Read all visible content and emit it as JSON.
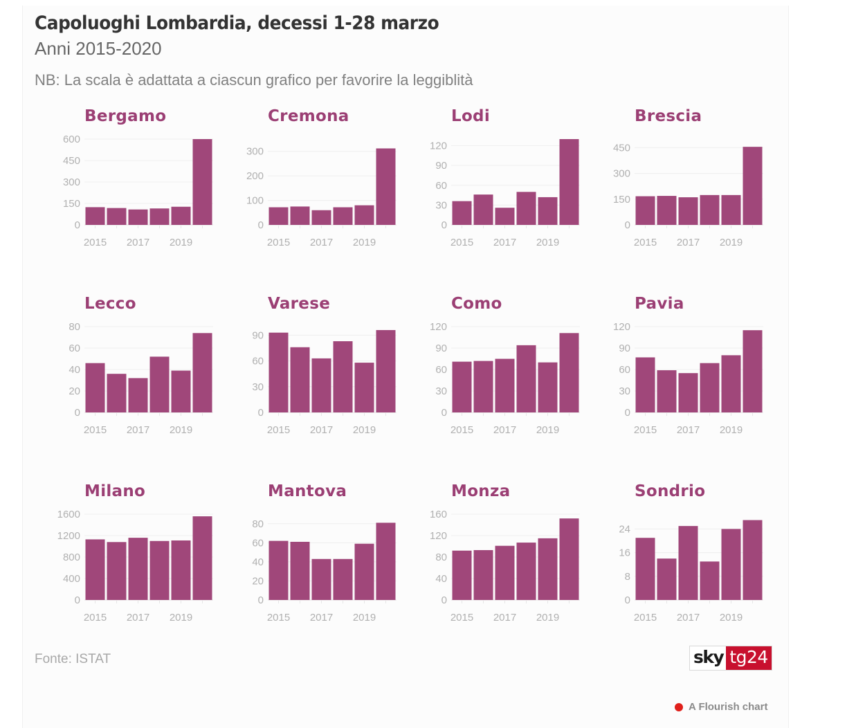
{
  "header": {
    "title": "Capoluoghi Lombardia, decessi 1-28 marzo",
    "subtitle": "Anni 2015-2020",
    "note": "NB: La scala è adattata a ciascun grafico per favorire la leggiblità"
  },
  "footer": {
    "source": "Fonte: ISTAT",
    "logo_left": "sky",
    "logo_right": "tg24",
    "flourish_label": "A Flourish chart"
  },
  "colors": {
    "bar": "#a0477a",
    "panel_title": "#9b3f74",
    "logo_red": "#c8102e"
  },
  "chart_data": [
    {
      "type": "bar",
      "title": "Bergamo",
      "categories": [
        "2015",
        "2016",
        "2017",
        "2018",
        "2019",
        "2020"
      ],
      "x_tick_labels": [
        "2015",
        "2017",
        "2019"
      ],
      "values": [
        124,
        118,
        108,
        115,
        127,
        600
      ],
      "yticks": [
        0,
        150,
        300,
        450,
        600
      ],
      "ylim": [
        0,
        600
      ],
      "xlabel": "",
      "ylabel": "",
      "grid": true
    },
    {
      "type": "bar",
      "title": "Cremona",
      "categories": [
        "2015",
        "2016",
        "2017",
        "2018",
        "2019",
        "2020"
      ],
      "x_tick_labels": [
        "2015",
        "2017",
        "2019"
      ],
      "values": [
        72,
        75,
        60,
        72,
        80,
        312
      ],
      "yticks": [
        0,
        100,
        200,
        300
      ],
      "ylim": [
        0,
        350
      ],
      "xlabel": "",
      "ylabel": "",
      "grid": true
    },
    {
      "type": "bar",
      "title": "Lodi",
      "categories": [
        "2015",
        "2016",
        "2017",
        "2018",
        "2019",
        "2020"
      ],
      "x_tick_labels": [
        "2015",
        "2017",
        "2019"
      ],
      "values": [
        36,
        46,
        26,
        50,
        42,
        130
      ],
      "yticks": [
        0,
        30,
        60,
        90,
        120
      ],
      "ylim": [
        0,
        130
      ],
      "xlabel": "",
      "ylabel": "",
      "grid": true
    },
    {
      "type": "bar",
      "title": "Brescia",
      "categories": [
        "2015",
        "2016",
        "2017",
        "2018",
        "2019",
        "2020"
      ],
      "x_tick_labels": [
        "2015",
        "2017",
        "2019"
      ],
      "values": [
        167,
        169,
        161,
        174,
        174,
        455
      ],
      "yticks": [
        0,
        150,
        300,
        450
      ],
      "ylim": [
        0,
        500
      ],
      "xlabel": "",
      "ylabel": "",
      "grid": true
    },
    {
      "type": "bar",
      "title": "Lecco",
      "categories": [
        "2015",
        "2016",
        "2017",
        "2018",
        "2019",
        "2020"
      ],
      "x_tick_labels": [
        "2015",
        "2017",
        "2019"
      ],
      "values": [
        46,
        36,
        32,
        52,
        39,
        74
      ],
      "yticks": [
        0,
        20,
        40,
        60,
        80
      ],
      "ylim": [
        0,
        80
      ],
      "xlabel": "",
      "ylabel": "",
      "grid": true
    },
    {
      "type": "bar",
      "title": "Varese",
      "categories": [
        "2015",
        "2016",
        "2017",
        "2018",
        "2019",
        "2020"
      ],
      "x_tick_labels": [
        "2015",
        "2017",
        "2019"
      ],
      "values": [
        93,
        76,
        63,
        83,
        58,
        96
      ],
      "yticks": [
        0,
        30,
        60,
        90
      ],
      "ylim": [
        0,
        100
      ],
      "xlabel": "",
      "ylabel": "",
      "grid": true
    },
    {
      "type": "bar",
      "title": "Como",
      "categories": [
        "2015",
        "2016",
        "2017",
        "2018",
        "2019",
        "2020"
      ],
      "x_tick_labels": [
        "2015",
        "2017",
        "2019"
      ],
      "values": [
        71,
        72,
        75,
        94,
        70,
        111
      ],
      "yticks": [
        0,
        30,
        60,
        90,
        120
      ],
      "ylim": [
        0,
        120
      ],
      "xlabel": "",
      "ylabel": "",
      "grid": true
    },
    {
      "type": "bar",
      "title": "Pavia",
      "categories": [
        "2015",
        "2016",
        "2017",
        "2018",
        "2019",
        "2020"
      ],
      "x_tick_labels": [
        "2015",
        "2017",
        "2019"
      ],
      "values": [
        77,
        59,
        55,
        69,
        80,
        115
      ],
      "yticks": [
        0,
        30,
        60,
        90,
        120
      ],
      "ylim": [
        0,
        120
      ],
      "xlabel": "",
      "ylabel": "",
      "grid": true
    },
    {
      "type": "bar",
      "title": "Milano",
      "categories": [
        "2015",
        "2016",
        "2017",
        "2018",
        "2019",
        "2020"
      ],
      "x_tick_labels": [
        "2015",
        "2017",
        "2019"
      ],
      "values": [
        1130,
        1080,
        1160,
        1100,
        1110,
        1560
      ],
      "yticks": [
        0,
        400,
        800,
        1200,
        1600
      ],
      "ylim": [
        0,
        1600
      ],
      "xlabel": "",
      "ylabel": "",
      "grid": true
    },
    {
      "type": "bar",
      "title": "Mantova",
      "categories": [
        "2015",
        "2016",
        "2017",
        "2018",
        "2019",
        "2020"
      ],
      "x_tick_labels": [
        "2015",
        "2017",
        "2019"
      ],
      "values": [
        62,
        61,
        43,
        43,
        59,
        81
      ],
      "yticks": [
        0,
        20,
        40,
        60,
        80
      ],
      "ylim": [
        0,
        90
      ],
      "xlabel": "",
      "ylabel": "",
      "grid": true
    },
    {
      "type": "bar",
      "title": "Monza",
      "categories": [
        "2015",
        "2016",
        "2017",
        "2018",
        "2019",
        "2020"
      ],
      "x_tick_labels": [
        "2015",
        "2017",
        "2019"
      ],
      "values": [
        92,
        93,
        101,
        107,
        115,
        152
      ],
      "yticks": [
        0,
        40,
        80,
        120,
        160
      ],
      "ylim": [
        0,
        160
      ],
      "xlabel": "",
      "ylabel": "",
      "grid": true
    },
    {
      "type": "bar",
      "title": "Sondrio",
      "categories": [
        "2015",
        "2016",
        "2017",
        "2018",
        "2019",
        "2020"
      ],
      "x_tick_labels": [
        "2015",
        "2017",
        "2019"
      ],
      "values": [
        21,
        14,
        25,
        13,
        24,
        27
      ],
      "yticks": [
        0,
        8,
        16,
        24
      ],
      "ylim": [
        0,
        29
      ],
      "xlabel": "",
      "ylabel": "",
      "grid": true
    }
  ]
}
